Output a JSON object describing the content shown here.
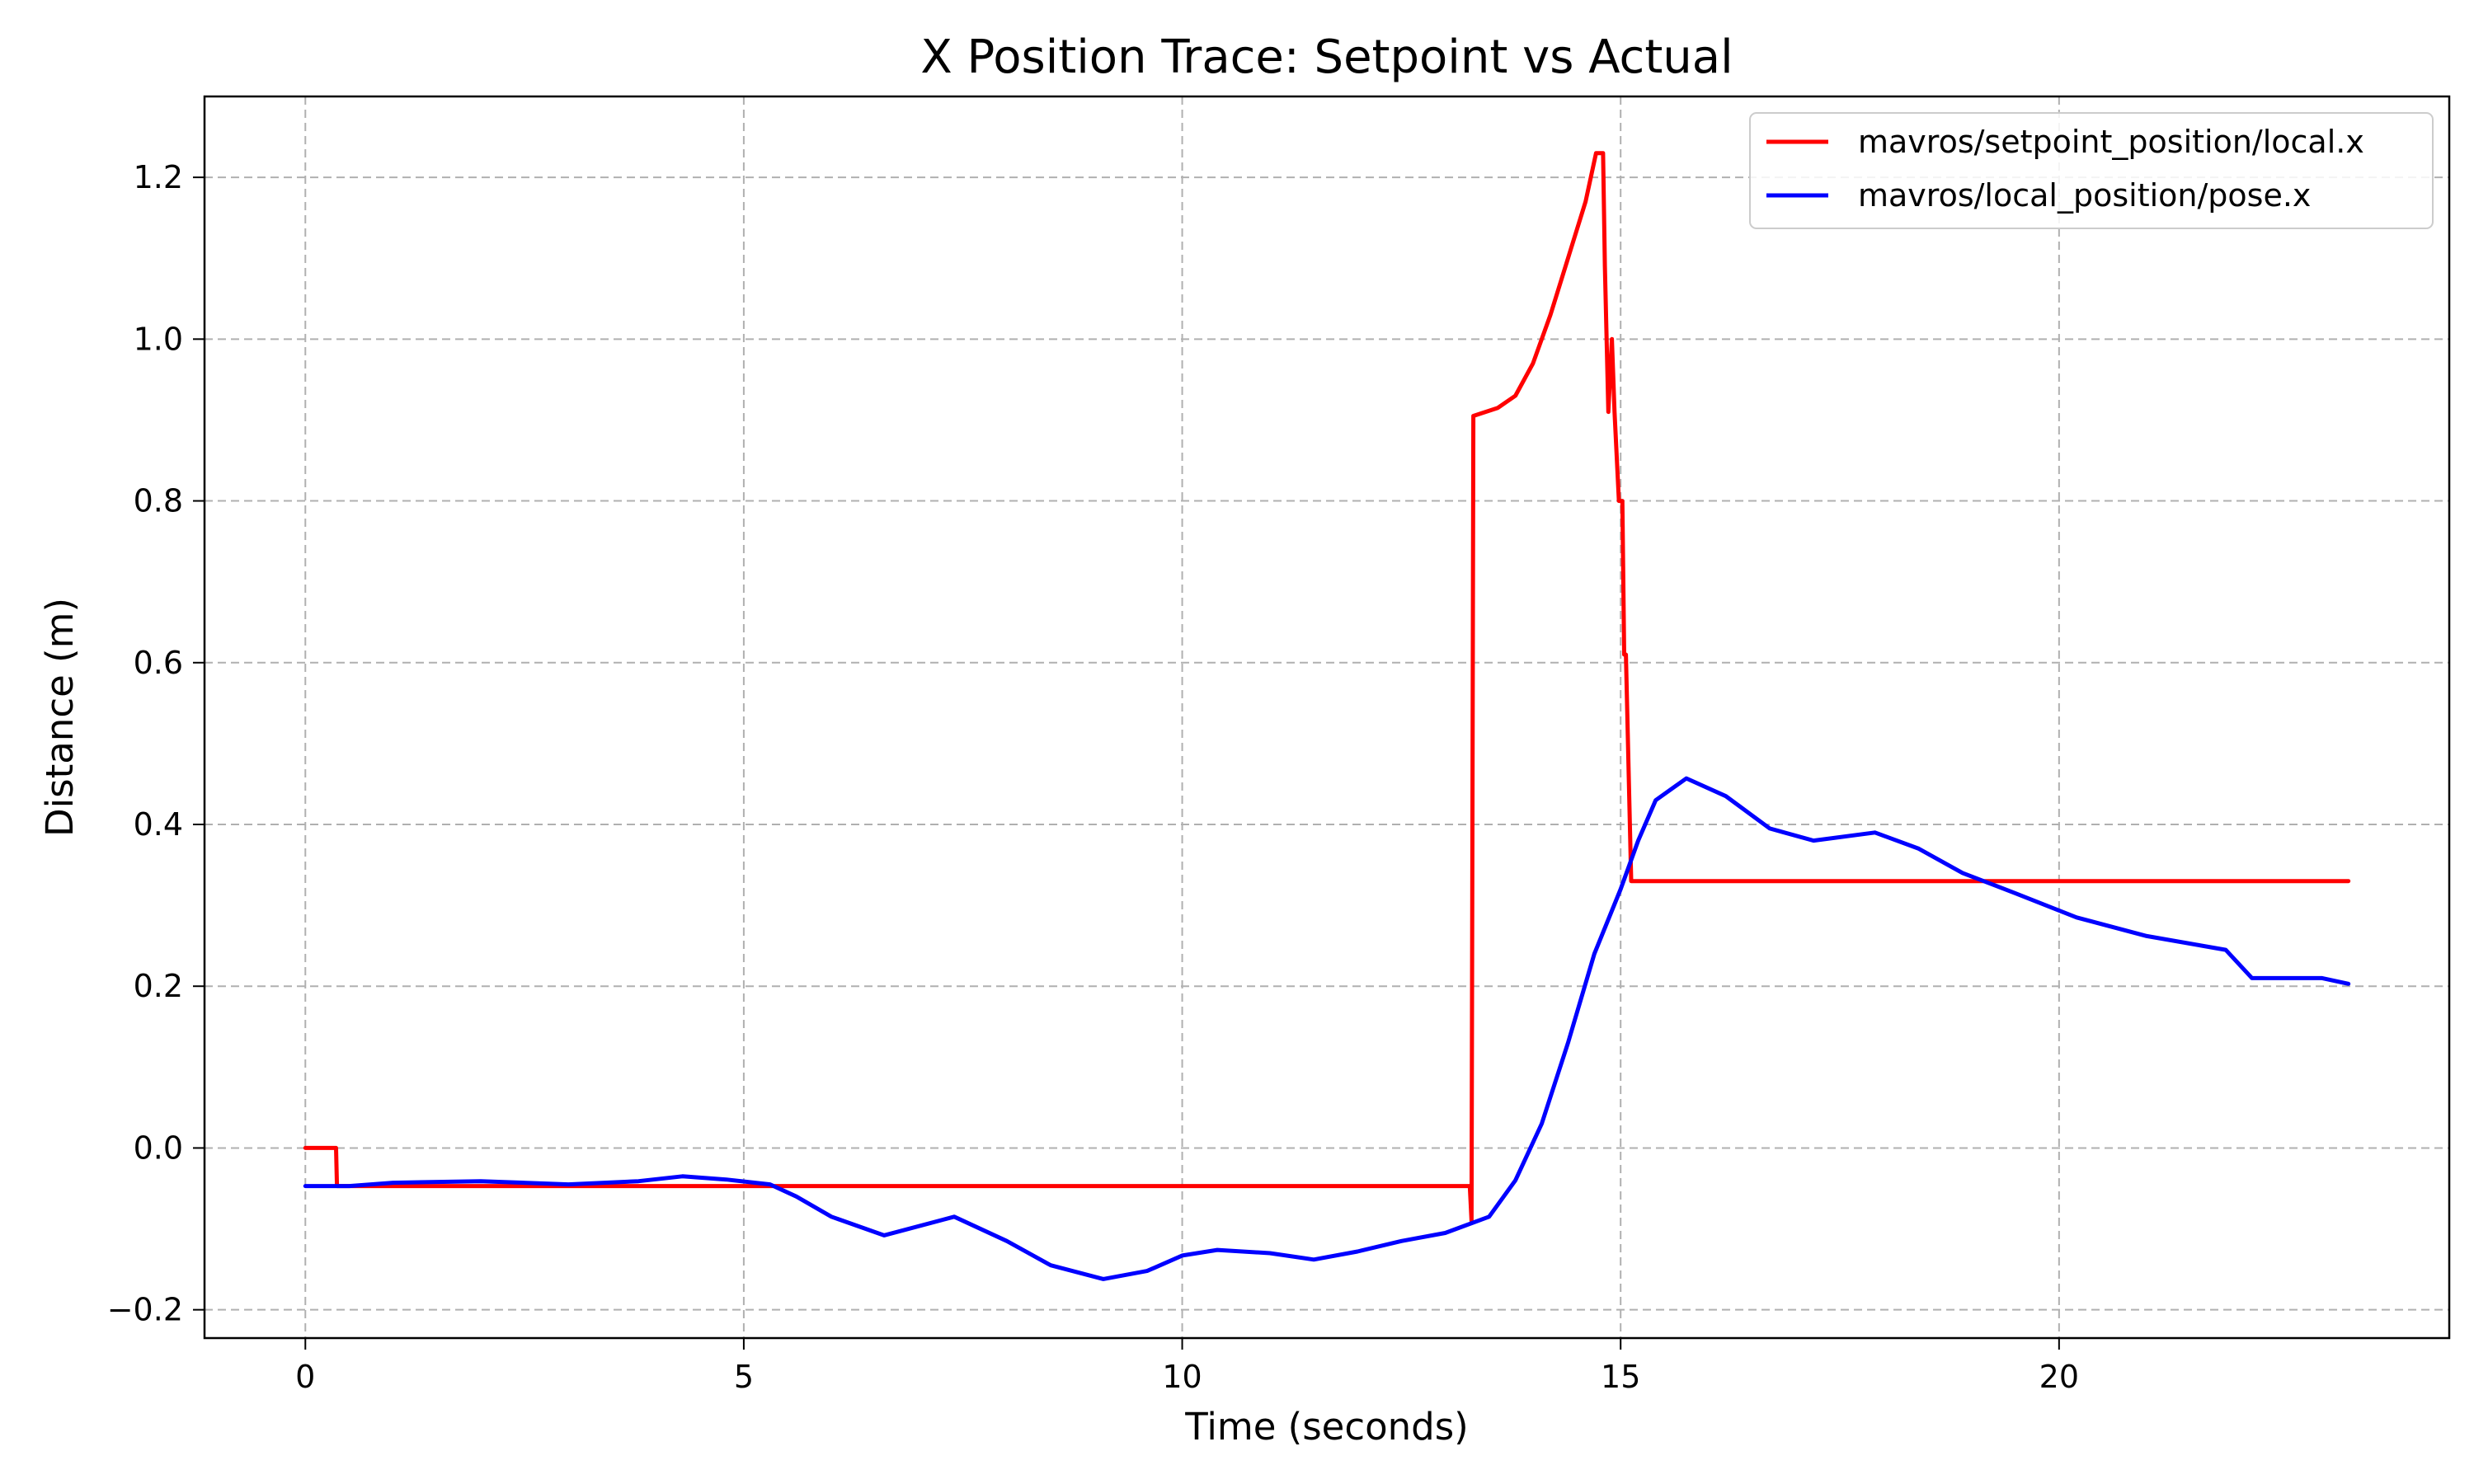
{
  "chart_data": {
    "type": "line",
    "title": "X Position Trace: Setpoint vs Actual",
    "xlabel": "Time (seconds)",
    "ylabel": "Distance (m)",
    "xlim": [
      -1.15,
      24.45
    ],
    "ylim": [
      -0.235,
      1.3
    ],
    "xticks": [
      0,
      5,
      10,
      15,
      20
    ],
    "yticks": [
      -0.2,
      0.0,
      0.2,
      0.4,
      0.6,
      0.8,
      1.0,
      1.2
    ],
    "ytick_labels": [
      "−0.2",
      "0.0",
      "0.2",
      "0.4",
      "0.6",
      "0.8",
      "1.0",
      "1.2"
    ],
    "grid": true,
    "legend_position": "top-right",
    "series": [
      {
        "name": "mavros/setpoint_position/local.x",
        "color": "#ff0000",
        "points": [
          [
            0,
            0.0
          ],
          [
            0.35,
            0.0
          ],
          [
            0.36,
            -0.047
          ],
          [
            13.28,
            -0.047
          ],
          [
            13.3,
            -0.09
          ],
          [
            13.32,
            0.905
          ],
          [
            13.6,
            0.915
          ],
          [
            13.8,
            0.93
          ],
          [
            14.0,
            0.97
          ],
          [
            14.2,
            1.03
          ],
          [
            14.4,
            1.1
          ],
          [
            14.6,
            1.17
          ],
          [
            14.72,
            1.23
          ],
          [
            14.8,
            1.23
          ],
          [
            14.82,
            1.09
          ],
          [
            14.86,
            0.91
          ],
          [
            14.9,
            1.0
          ],
          [
            14.93,
            0.91
          ],
          [
            14.98,
            0.8
          ],
          [
            15.02,
            0.8
          ],
          [
            15.04,
            0.61
          ],
          [
            15.06,
            0.61
          ],
          [
            15.12,
            0.33
          ],
          [
            23.3,
            0.33
          ]
        ]
      },
      {
        "name": "mavros/local_position/pose.x",
        "color": "#0000ff",
        "points": [
          [
            0,
            -0.047
          ],
          [
            0.5,
            -0.047
          ],
          [
            1.0,
            -0.043
          ],
          [
            2.0,
            -0.041
          ],
          [
            3.0,
            -0.045
          ],
          [
            3.8,
            -0.041
          ],
          [
            4.3,
            -0.035
          ],
          [
            4.8,
            -0.039
          ],
          [
            5.3,
            -0.045
          ],
          [
            5.6,
            -0.06
          ],
          [
            6.0,
            -0.085
          ],
          [
            6.6,
            -0.108
          ],
          [
            7.4,
            -0.085
          ],
          [
            8.0,
            -0.115
          ],
          [
            8.5,
            -0.145
          ],
          [
            9.1,
            -0.162
          ],
          [
            9.6,
            -0.152
          ],
          [
            10.0,
            -0.133
          ],
          [
            10.4,
            -0.126
          ],
          [
            11.0,
            -0.13
          ],
          [
            11.5,
            -0.138
          ],
          [
            12.0,
            -0.128
          ],
          [
            12.5,
            -0.115
          ],
          [
            13.0,
            -0.105
          ],
          [
            13.5,
            -0.085
          ],
          [
            13.8,
            -0.04
          ],
          [
            14.1,
            0.03
          ],
          [
            14.4,
            0.13
          ],
          [
            14.7,
            0.24
          ],
          [
            15.0,
            0.32
          ],
          [
            15.2,
            0.38
          ],
          [
            15.4,
            0.43
          ],
          [
            15.75,
            0.457
          ],
          [
            16.2,
            0.435
          ],
          [
            16.7,
            0.395
          ],
          [
            17.2,
            0.38
          ],
          [
            17.9,
            0.39
          ],
          [
            18.4,
            0.37
          ],
          [
            18.9,
            0.34
          ],
          [
            19.5,
            0.315
          ],
          [
            20.2,
            0.285
          ],
          [
            21.0,
            0.262
          ],
          [
            21.9,
            0.245
          ],
          [
            22.2,
            0.21
          ],
          [
            23.0,
            0.21
          ],
          [
            23.3,
            0.203
          ]
        ]
      }
    ]
  }
}
